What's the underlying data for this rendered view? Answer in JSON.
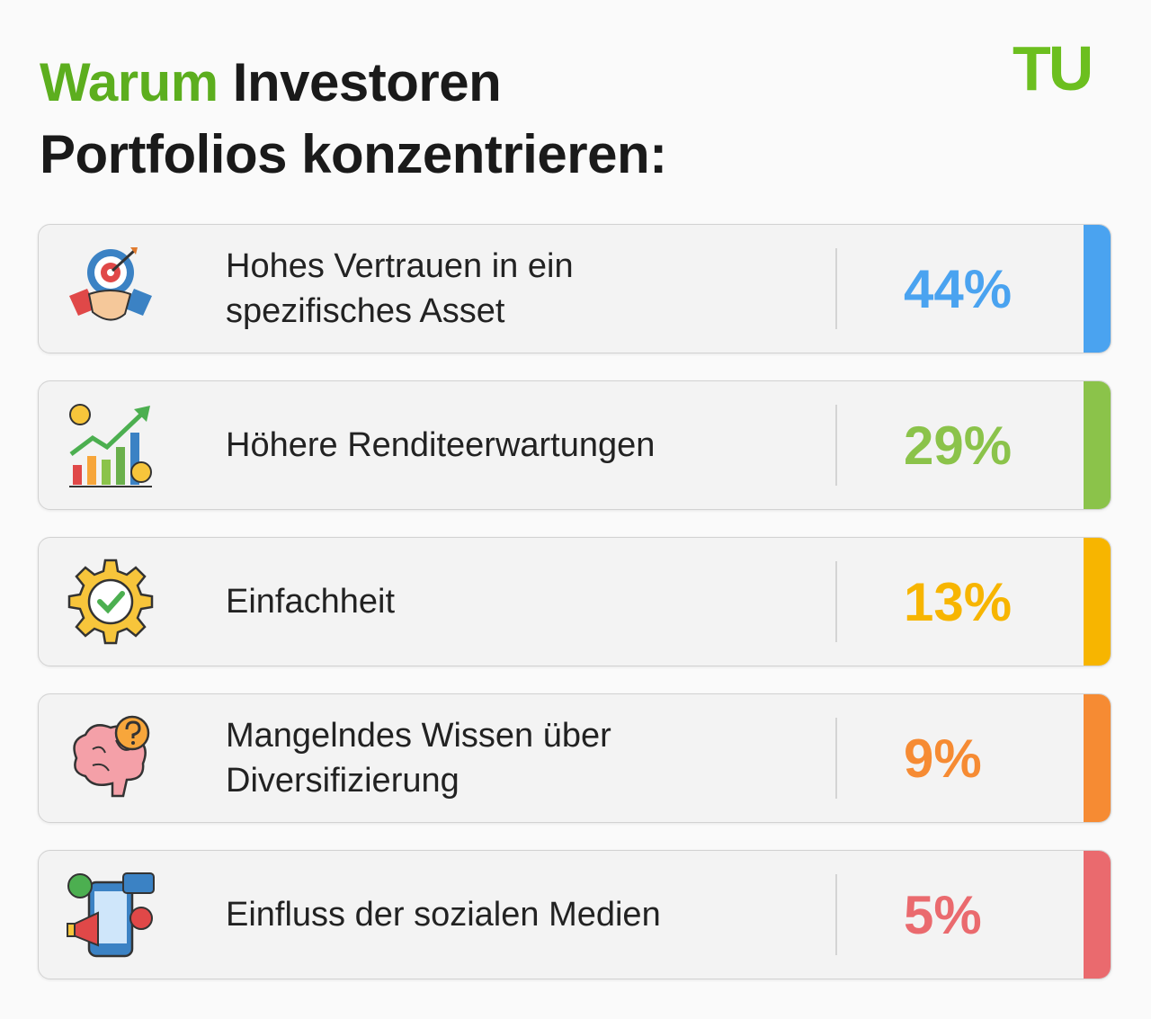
{
  "header": {
    "title_highlight": "Warum",
    "title_rest": "Investoren",
    "title_line2": "Portfolios konzentrieren:",
    "logo": "TU"
  },
  "items": [
    {
      "lines": [
        "Hohes Vertrauen in ein",
        "spezifisches Asset"
      ],
      "value": "44%",
      "color": "#4aa3f0"
    },
    {
      "lines": [
        "Höhere Renditeerwartungen"
      ],
      "value": "29%",
      "color": "#8bc34a"
    },
    {
      "lines": [
        "Einfachheit"
      ],
      "value": "13%",
      "color": "#f7b500"
    },
    {
      "lines": [
        "Mangelndes Wissen über",
        "Diversifizierung"
      ],
      "value": "9%",
      "color": "#f68b33"
    },
    {
      "lines": [
        "Einfluss der sozialen Medien"
      ],
      "value": "5%",
      "color": "#ea6a6e"
    }
  ]
}
